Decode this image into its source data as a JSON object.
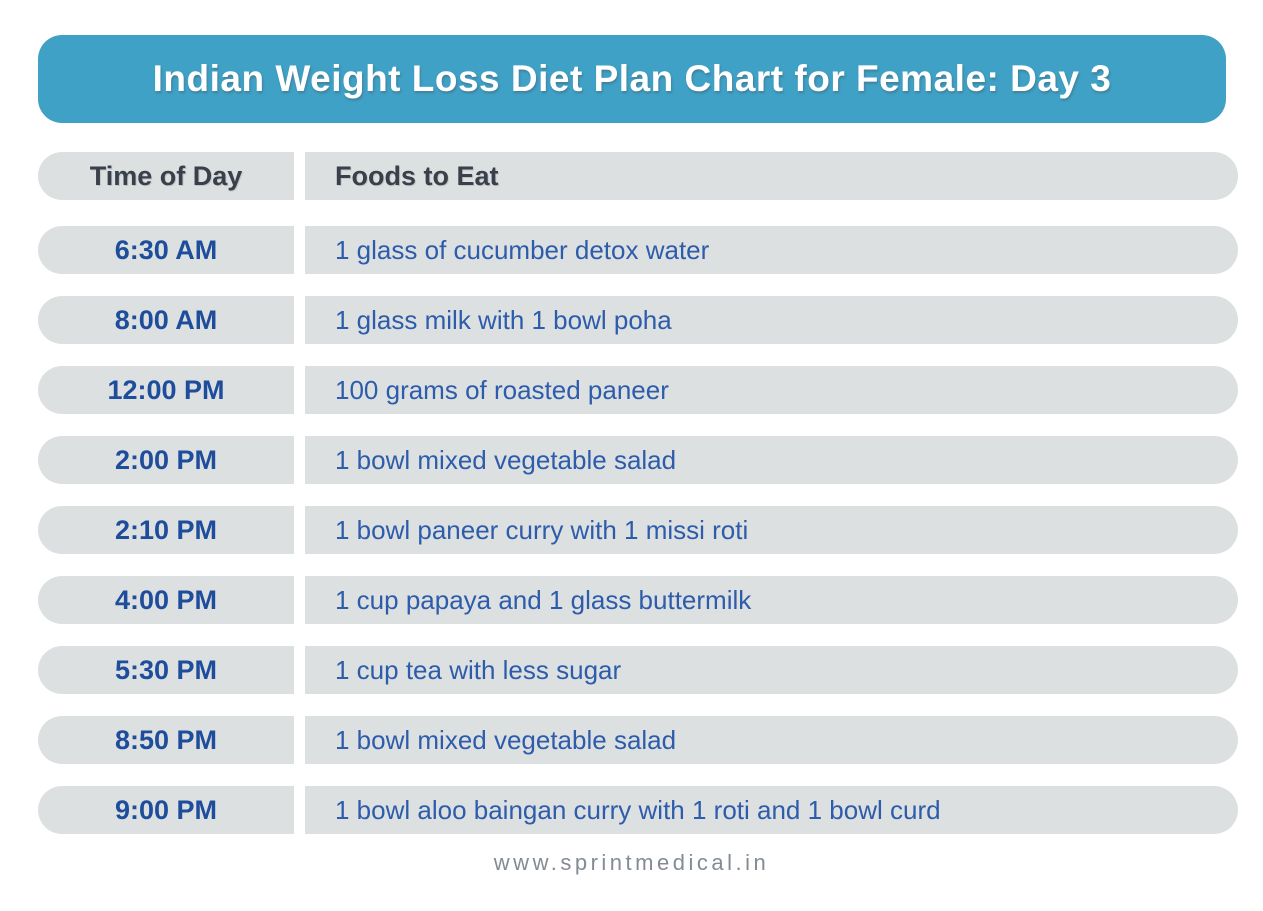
{
  "banner": {
    "title": "Indian Weight Loss Diet Plan Chart for Female: Day 3"
  },
  "chart_data": {
    "type": "table",
    "title": "Indian Weight Loss Diet Plan Chart for Female: Day 3",
    "columns": [
      "Time of Day",
      "Foods to Eat"
    ],
    "rows": [
      {
        "time": "6:30 AM",
        "food": "1 glass of cucumber detox water"
      },
      {
        "time": "8:00 AM",
        "food": "1 glass milk with 1 bowl poha"
      },
      {
        "time": "12:00 PM",
        "food": "100 grams of roasted paneer"
      },
      {
        "time": "2:00 PM",
        "food": "1 bowl mixed vegetable salad"
      },
      {
        "time": "2:10 PM",
        "food": "1 bowl paneer curry with 1 missi roti"
      },
      {
        "time": "4:00 PM",
        "food": "1 cup papaya and 1 glass buttermilk"
      },
      {
        "time": "5:30 PM",
        "food": "1 cup tea with less sugar"
      },
      {
        "time": "8:50 PM",
        "food": "1 bowl mixed vegetable salad"
      },
      {
        "time": "9:00 PM",
        "food": "1 bowl aloo baingan curry with 1 roti and 1 bowl curd"
      }
    ]
  },
  "footer": {
    "website": "www.sprintmedical.in"
  },
  "colors": {
    "banner_background": "#3fa1c6",
    "banner_text": "#ffffff",
    "row_background": "#dde0e1",
    "header_text": "#3a404b",
    "time_text": "#1e4d9c",
    "food_text": "#2d5cab",
    "footer_text": "#848b93"
  }
}
